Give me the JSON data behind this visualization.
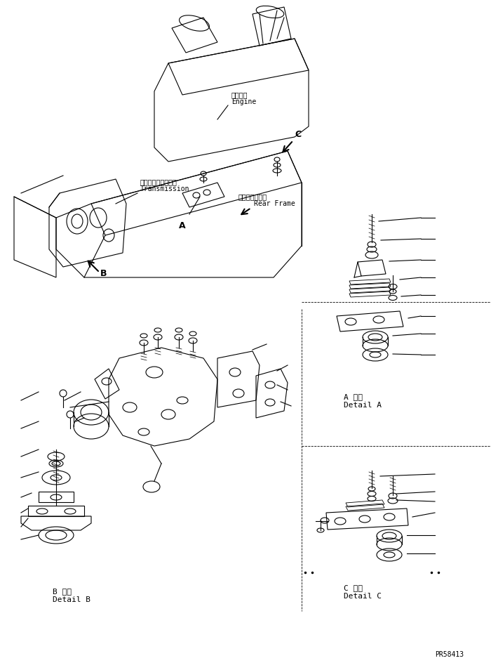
{
  "bg_color": "#ffffff",
  "line_color": "#000000",
  "fig_width": 7.0,
  "fig_height": 9.44,
  "dpi": 100,
  "footer_text": "PR58413",
  "labels": {
    "engine_jp": "エンジン",
    "engine_en": "Engine",
    "transmission_jp": "トランスミッション",
    "transmission_en": "Transmission",
    "rear_frame_jp": "リヤーフレーム",
    "rear_frame_en": "Rear Frame",
    "detail_a_jp": "A 詳細",
    "detail_a_en": "Detail A",
    "detail_b_jp": "B 詳細",
    "detail_b_en": "Detail B",
    "detail_c_jp": "C 詳細",
    "detail_c_en": "Detail C",
    "label_a": "A",
    "label_b": "B",
    "label_c": "C"
  }
}
